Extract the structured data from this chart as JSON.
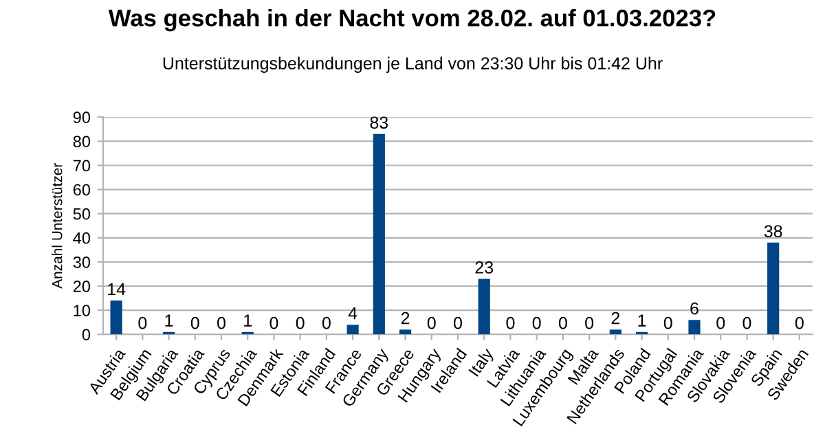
{
  "chart_data": {
    "type": "bar",
    "title": "Was geschah in der Nacht vom 28.02. auf 01.03.2023?",
    "subtitle": "Unterstützungsbekundungen je Land von 23:30 Uhr bis 01:42 Uhr",
    "ylabel": "Anzahl Unterstützer",
    "categories": [
      "Austria",
      "Belgium",
      "Bulgaria",
      "Croatia",
      "Cyprus",
      "Czechia",
      "Denmark",
      "Estonia",
      "Finland",
      "France",
      "Germany",
      "Greece",
      "Hungary",
      "Ireland",
      "Italy",
      "Latvia",
      "Lithuania",
      "Luxembourg",
      "Malta",
      "Netherlands",
      "Poland",
      "Portugal",
      "Romania",
      "Slovakia",
      "Slovenia",
      "Spain",
      "Sweden"
    ],
    "values": [
      14,
      0,
      1,
      0,
      0,
      1,
      0,
      0,
      0,
      4,
      83,
      2,
      0,
      0,
      23,
      0,
      0,
      0,
      0,
      2,
      1,
      0,
      6,
      0,
      0,
      38,
      0
    ],
    "color": "#004586",
    "ylim": [
      0,
      90
    ],
    "yticks": [
      0,
      10,
      20,
      30,
      40,
      50,
      60,
      70,
      80,
      90
    ],
    "grid": "y",
    "data_labels": true,
    "legend": false
  }
}
